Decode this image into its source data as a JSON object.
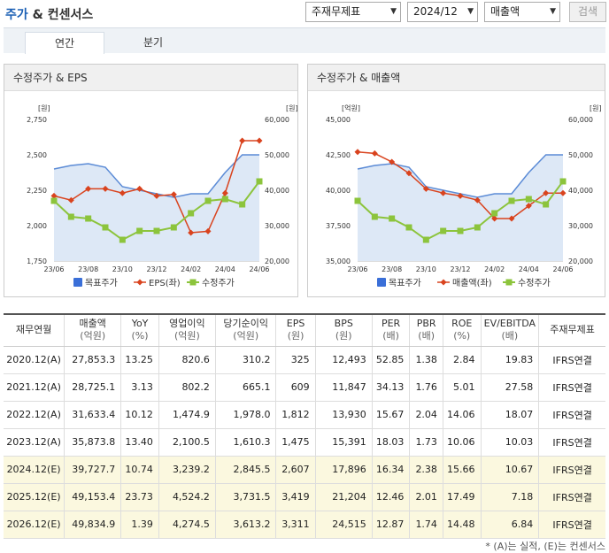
{
  "header": {
    "title_main": "주가",
    "title_rest": "& 컨센서스",
    "select_consensus": "주재무제표",
    "select_period": "2024/12",
    "select_metric": "매출액",
    "search_label": "검색"
  },
  "tabs": [
    {
      "label": "연간"
    },
    {
      "label": "분기"
    }
  ],
  "colors": {
    "target": "#3a6fd8",
    "eps": "#d9431e",
    "price": "#8cc43c"
  },
  "charts": [
    {
      "title": "수정주가 & EPS",
      "left_unit": "[원]",
      "right_unit": "[원]",
      "left_ticks": [
        "2,750",
        "2,500",
        "2,250",
        "2,000",
        "1,750"
      ],
      "right_ticks": [
        "60,000",
        "50,000",
        "40,000",
        "30,000",
        "20,000"
      ],
      "x_ticks": [
        "23/06",
        "23/08",
        "23/10",
        "23/12",
        "24/02",
        "24/04",
        "24/06"
      ],
      "legend": [
        "목표주가",
        "EPS(좌)",
        "수정주가"
      ]
    },
    {
      "title": "수정주가 & 매출액",
      "left_unit": "[억원]",
      "right_unit": "[원]",
      "left_ticks": [
        "45,000",
        "42,500",
        "40,000",
        "37,500",
        "35,000"
      ],
      "right_ticks": [
        "60,000",
        "50,000",
        "40,000",
        "30,000",
        "20,000"
      ],
      "x_ticks": [
        "23/06",
        "23/08",
        "23/10",
        "23/12",
        "24/02",
        "24/04",
        "24/06"
      ],
      "legend": [
        "목표주가",
        "매출액(좌)",
        "수정주가"
      ]
    }
  ],
  "chart_data": [
    {
      "type": "line",
      "title": "수정주가 & EPS",
      "x": [
        "23/06",
        "23/07",
        "23/08",
        "23/09",
        "23/10",
        "23/11",
        "23/12",
        "24/01",
        "24/02",
        "24/03",
        "24/04",
        "24/05",
        "24/06"
      ],
      "left_range": [
        1750,
        2750
      ],
      "right_range": [
        20000,
        60000
      ],
      "series": [
        {
          "name": "목표주가",
          "axis": "right",
          "values": [
            46000,
            47000,
            47500,
            46500,
            41000,
            40000,
            39000,
            38000,
            39000,
            39000,
            45000,
            50000,
            50000
          ]
        },
        {
          "name": "EPS(좌)",
          "axis": "left",
          "values": [
            2210,
            2180,
            2260,
            2260,
            2230,
            2260,
            2210,
            2220,
            1950,
            1960,
            2230,
            2600,
            2600
          ]
        },
        {
          "name": "수정주가",
          "axis": "right",
          "values": [
            37000,
            32500,
            32000,
            29500,
            26000,
            28500,
            28500,
            29500,
            33500,
            37000,
            37500,
            36000,
            42500
          ]
        }
      ]
    },
    {
      "type": "line",
      "title": "수정주가 & 매출액",
      "x": [
        "23/06",
        "23/07",
        "23/08",
        "23/09",
        "23/10",
        "23/11",
        "23/12",
        "24/01",
        "24/02",
        "24/03",
        "24/04",
        "24/05",
        "24/06"
      ],
      "left_range": [
        35000,
        45000
      ],
      "right_range": [
        20000,
        60000
      ],
      "series": [
        {
          "name": "목표주가",
          "axis": "right",
          "values": [
            46000,
            47000,
            47500,
            46500,
            41000,
            40000,
            39000,
            38000,
            39000,
            39000,
            45000,
            50000,
            50000
          ]
        },
        {
          "name": "매출액(좌)",
          "axis": "left",
          "values": [
            42700,
            42600,
            42000,
            41200,
            40100,
            39800,
            39600,
            39300,
            38000,
            38000,
            38900,
            39800,
            39800
          ]
        },
        {
          "name": "수정주가",
          "axis": "right",
          "values": [
            37000,
            32500,
            32000,
            29500,
            26000,
            28500,
            28500,
            29500,
            33500,
            37000,
            37500,
            36000,
            42500
          ]
        }
      ]
    }
  ],
  "table": {
    "headers": [
      {
        "label": "재무연월",
        "unit": ""
      },
      {
        "label": "매출액",
        "unit": "(억원)"
      },
      {
        "label": "YoY",
        "unit": "(%)"
      },
      {
        "label": "영업이익",
        "unit": "(억원)"
      },
      {
        "label": "당기순이익",
        "unit": "(억원)"
      },
      {
        "label": "EPS",
        "unit": "(원)"
      },
      {
        "label": "BPS",
        "unit": "(원)"
      },
      {
        "label": "PER",
        "unit": "(배)"
      },
      {
        "label": "PBR",
        "unit": "(배)"
      },
      {
        "label": "ROE",
        "unit": "(%)"
      },
      {
        "label": "EV/EBITDA",
        "unit": "(배)"
      },
      {
        "label": "주재무제표",
        "unit": ""
      }
    ],
    "rows": [
      {
        "est": false,
        "cells": [
          "2020.12(A)",
          "27,853.3",
          "13.25",
          "820.6",
          "310.2",
          "325",
          "12,493",
          "52.85",
          "1.38",
          "2.84",
          "19.83",
          "IFRS연결"
        ]
      },
      {
        "est": false,
        "cells": [
          "2021.12(A)",
          "28,725.1",
          "3.13",
          "802.2",
          "665.1",
          "609",
          "11,847",
          "34.13",
          "1.76",
          "5.01",
          "27.58",
          "IFRS연결"
        ]
      },
      {
        "est": false,
        "cells": [
          "2022.12(A)",
          "31,633.4",
          "10.12",
          "1,474.9",
          "1,978.0",
          "1,812",
          "13,930",
          "15.67",
          "2.04",
          "14.06",
          "18.07",
          "IFRS연결"
        ]
      },
      {
        "est": false,
        "cells": [
          "2023.12(A)",
          "35,873.8",
          "13.40",
          "2,100.5",
          "1,610.3",
          "1,475",
          "15,391",
          "18.03",
          "1.73",
          "10.06",
          "10.03",
          "IFRS연결"
        ]
      },
      {
        "est": true,
        "cells": [
          "2024.12(E)",
          "39,727.7",
          "10.74",
          "3,239.2",
          "2,845.5",
          "2,607",
          "17,896",
          "16.34",
          "2.38",
          "15.66",
          "10.67",
          "IFRS연결"
        ]
      },
      {
        "est": true,
        "cells": [
          "2025.12(E)",
          "49,153.4",
          "23.73",
          "4,524.2",
          "3,731.5",
          "3,419",
          "21,204",
          "12.46",
          "2.01",
          "17.49",
          "7.18",
          "IFRS연결"
        ]
      },
      {
        "est": true,
        "cells": [
          "2026.12(E)",
          "49,834.9",
          "1.39",
          "4,274.5",
          "3,613.2",
          "3,311",
          "24,515",
          "12.87",
          "1.74",
          "14.48",
          "6.84",
          "IFRS연결"
        ]
      }
    ]
  },
  "footnote": "* (A)는 실적, (E)는 컨센서스"
}
